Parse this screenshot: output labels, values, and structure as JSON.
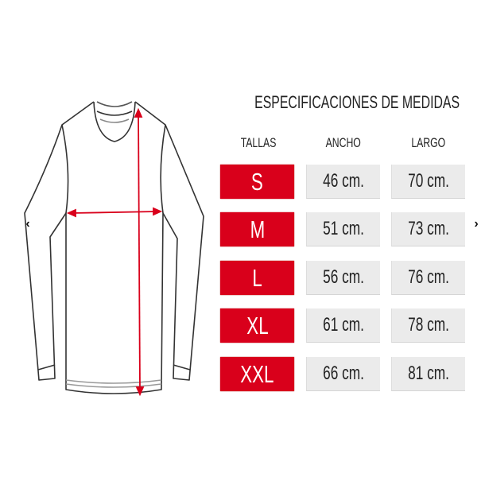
{
  "title": "ESPECIFICACIONES DE MEDIDAS",
  "headers": {
    "size": "TALLAS",
    "width": "ANCHO",
    "length": "LARGO"
  },
  "rows": [
    {
      "size": "S",
      "width": "46 cm.",
      "length": "70 cm."
    },
    {
      "size": "M",
      "width": "51 cm.",
      "length": "73 cm."
    },
    {
      "size": "L",
      "width": "56 cm.",
      "length": "76 cm."
    },
    {
      "size": "XL",
      "width": "61 cm.",
      "length": "78 cm."
    },
    {
      "size": "XXL",
      "width": "66 cm.",
      "length": "81 cm."
    }
  ],
  "carousel": {
    "prev_icon": "chevron-left-icon",
    "next_icon": "chevron-right-icon",
    "prev": "‹",
    "next": "›"
  },
  "colors": {
    "size_cell": "#d9001b",
    "value_cell": "#ebebeb",
    "measure_arrow": "#d9001b"
  }
}
